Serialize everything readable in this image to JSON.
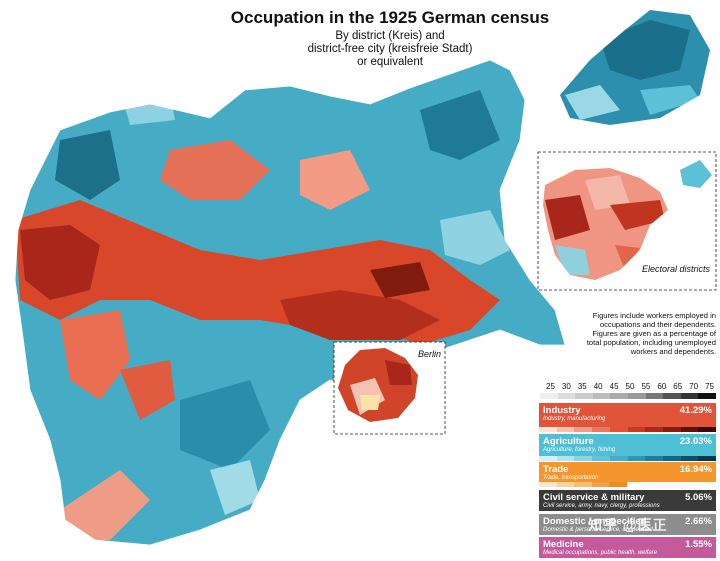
{
  "title": "Occupation in the 1925 German census",
  "subtitle_lines": [
    "By district (Kreis) and",
    "district-free city (kreisfreie Stadt)",
    "or equivalent"
  ],
  "insets": {
    "berlin_label": "Berlin",
    "electoral_label": "Electoral districts"
  },
  "notes": {
    "line1": "Figures include workers employed in",
    "line2": "occupations and their dependents.",
    "line3": "Figures are given as a percentage of",
    "line4": "total population, including unemployed",
    "line5": "workers and dependents."
  },
  "scale_ticks": [
    "25",
    "30",
    "35",
    "40",
    "45",
    "50",
    "55",
    "60",
    "65",
    "70",
    "75"
  ],
  "categories": [
    {
      "name": "Industry",
      "desc": "Industry, manufacturing",
      "value": "41.29%",
      "color": "#e0553a",
      "ramp": [
        "#fbe0d8",
        "#f6bfae",
        "#f09c86",
        "#e8775e",
        "#de5438",
        "#c93a22",
        "#a92a18",
        "#861d10",
        "#5e1208",
        "#3d0b04"
      ]
    },
    {
      "name": "Agriculture",
      "desc": "Agriculture, forestry, fishing",
      "value": "23.03%",
      "color": "#4fbfd6",
      "ramp": [
        "#d8f0f5",
        "#b4e3ec",
        "#8dd3e2",
        "#66c2d6",
        "#44aec8",
        "#2c97b4",
        "#1d7f9c",
        "#136782",
        "#0c4f66",
        "#06384b"
      ]
    },
    {
      "name": "Trade",
      "desc": "Trade, transportation",
      "value": "16.94%",
      "color": "#f4962c",
      "ramp": [
        "#fde7cc",
        "#fbd2a2",
        "#f8bb74",
        "#f4a248",
        "#ef8a22"
      ]
    },
    {
      "name": "Civil service & military",
      "desc": "Civil service, army, navy, clergy, professions",
      "value": "5.06%",
      "color": "#3a3a3a"
    },
    {
      "name": "Domestic / unspecified",
      "desc": "Domestic & personal service, unspecified",
      "value": "2.66%",
      "color": "#8d8d8d"
    },
    {
      "name": "Medicine",
      "desc": "Medical occupations, public health, welfare",
      "value": "1.55%",
      "color": "#c45a9c"
    }
  ],
  "watermark": "知乎 @医正"
}
